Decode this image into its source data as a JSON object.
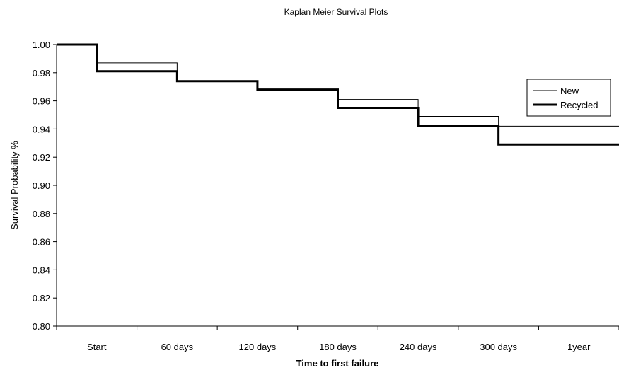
{
  "chart_data": {
    "type": "line",
    "title": "Kaplan Meier Survival Plots",
    "xlabel": "Time to first failure",
    "ylabel": "Survival Probability %",
    "categories": [
      "Start",
      "60 days",
      "120 days",
      "180 days",
      "240 days",
      "300 days",
      "1year"
    ],
    "ylim": [
      0.8,
      1.0
    ],
    "yticks": [
      "0.80",
      "0.82",
      "0.84",
      "0.86",
      "0.88",
      "0.90",
      "0.92",
      "0.94",
      "0.96",
      "0.98",
      "1.00"
    ],
    "step": true,
    "legend_position": "top-right",
    "series": [
      {
        "name": "New",
        "line_style": "thin",
        "values": [
          1.0,
          0.987,
          0.974,
          0.968,
          0.961,
          0.949,
          0.942
        ]
      },
      {
        "name": "Recycled",
        "line_style": "thick",
        "values": [
          1.0,
          0.981,
          0.974,
          0.968,
          0.955,
          0.942,
          0.929
        ]
      }
    ]
  }
}
